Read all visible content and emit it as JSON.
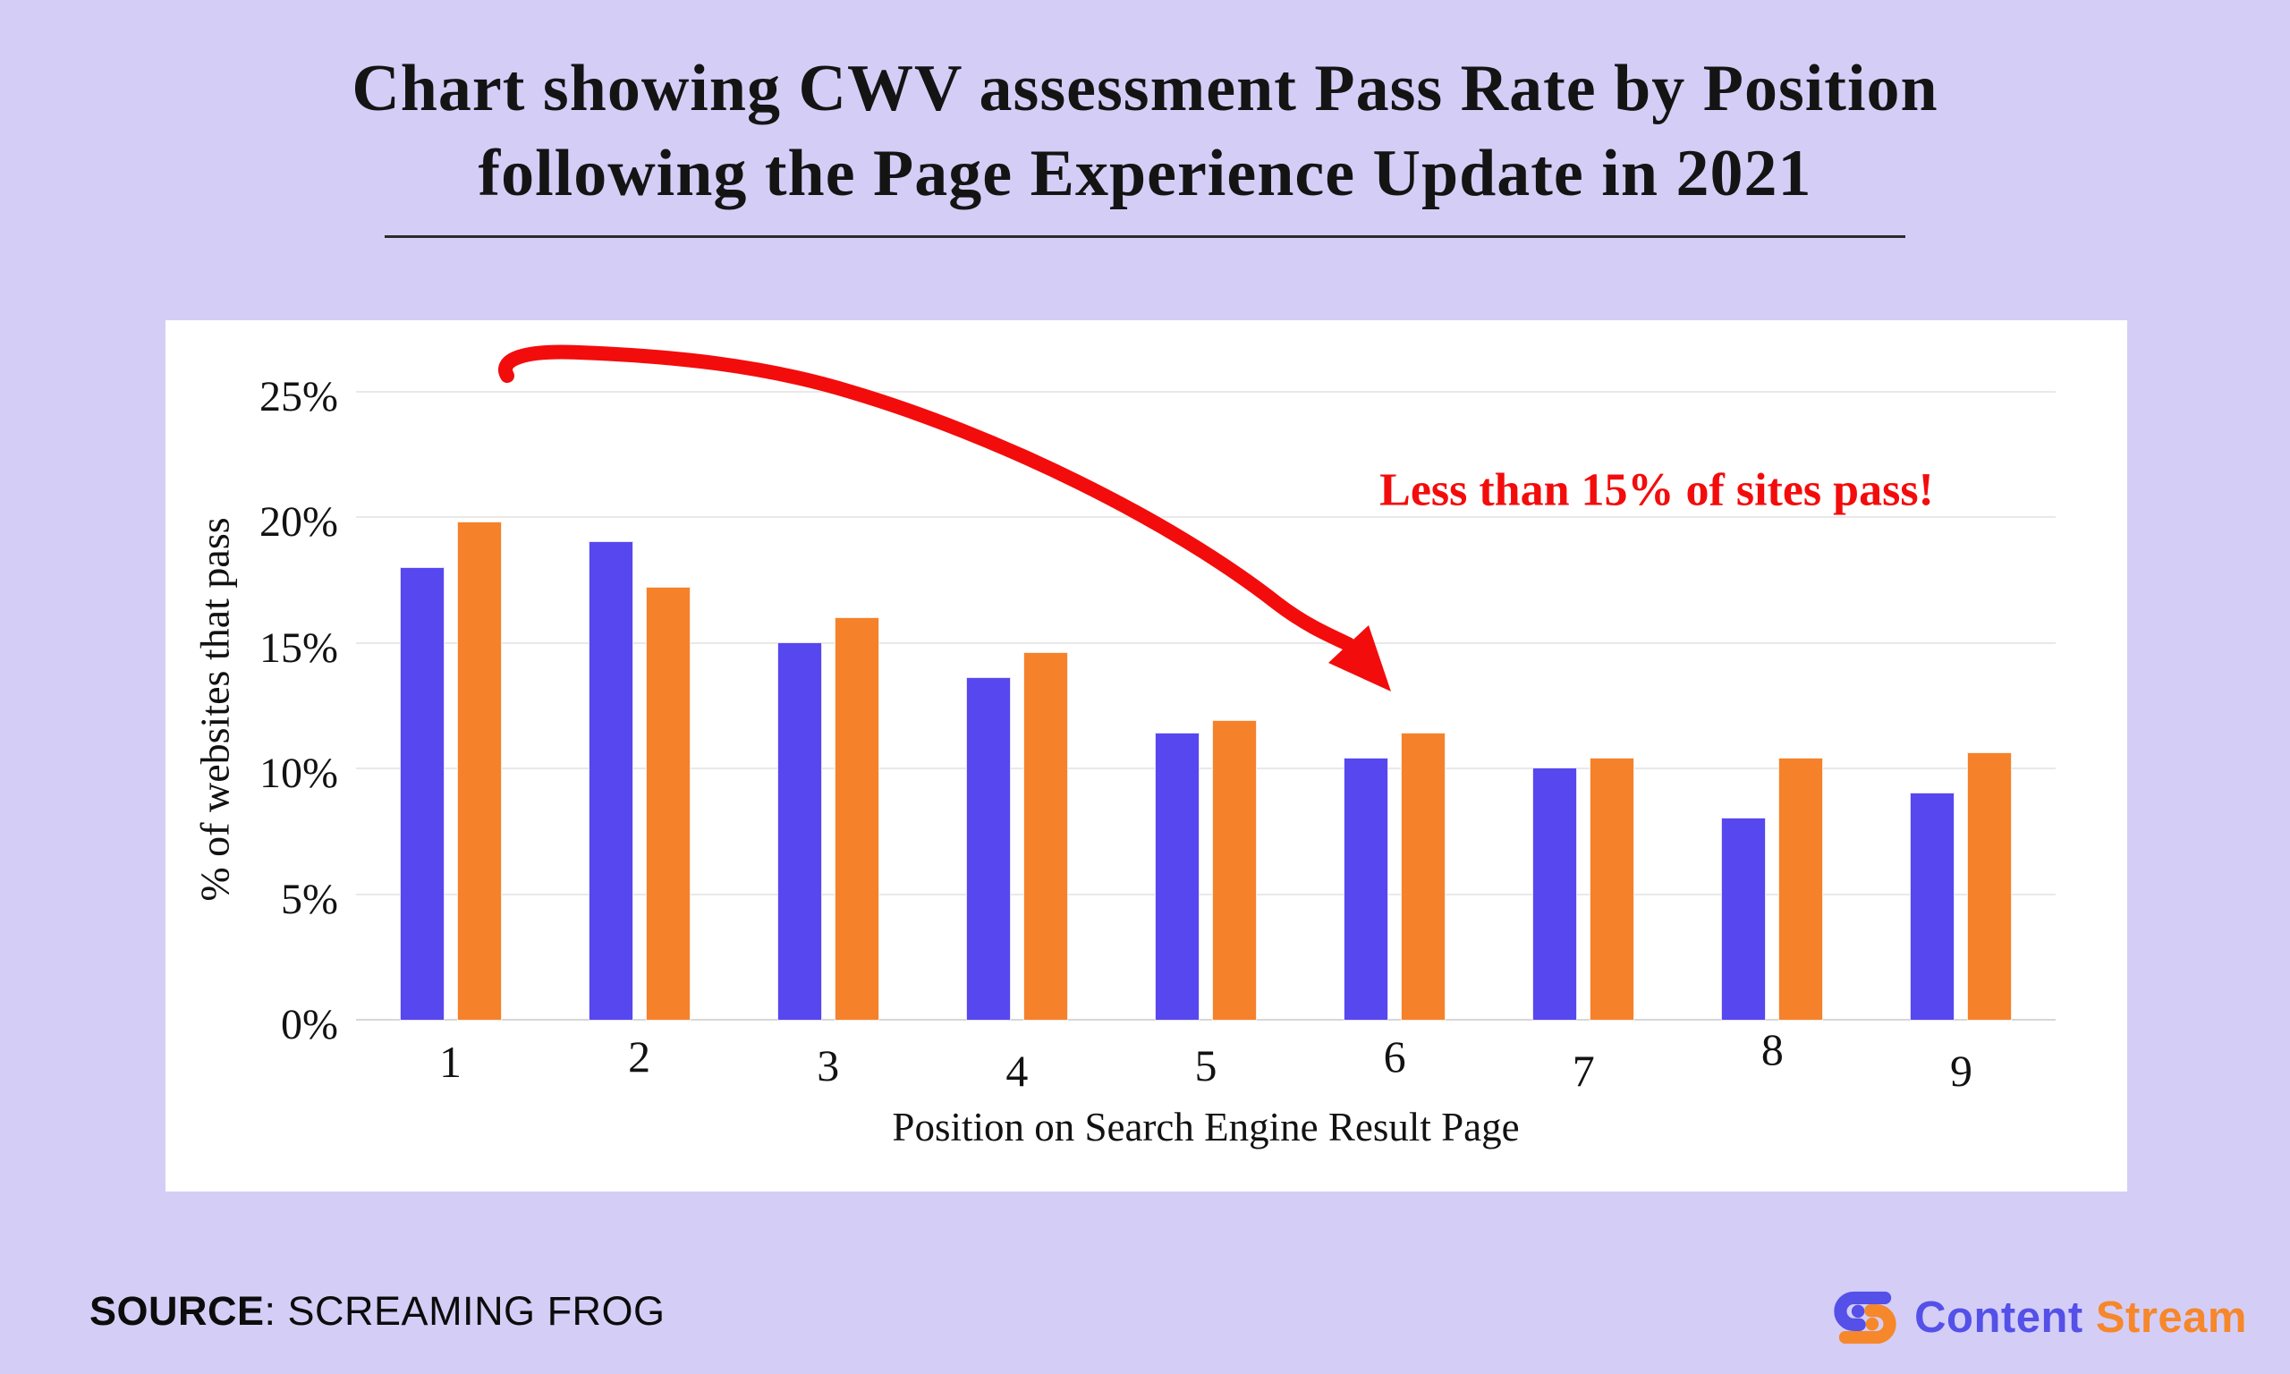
{
  "title": {
    "line1": "Chart showing CWV assessment Pass Rate by Position",
    "line2": "following the Page Experience Update in 2021"
  },
  "chart_data": {
    "type": "bar",
    "title": "Chart showing CWV assessment Pass Rate by Position following the Page Experience Update in 2021",
    "categories": [
      "1",
      "2",
      "3",
      "4",
      "5",
      "6",
      "7",
      "8",
      "9"
    ],
    "series": [
      {
        "name": "series-blue",
        "color": "#5747ee",
        "values": [
          18.0,
          19.0,
          15.0,
          13.6,
          11.4,
          10.4,
          10.0,
          8.0,
          9.0
        ]
      },
      {
        "name": "series-orange",
        "color": "#f5812b",
        "values": [
          19.8,
          17.2,
          16.0,
          14.6,
          11.9,
          11.4,
          10.4,
          10.4,
          10.6
        ]
      }
    ],
    "xlabel": "Position on Search Engine Result Page",
    "ylabel": "% of websites that pass",
    "ylim": [
      0,
      25
    ],
    "ytick_step": 5,
    "ytick_labels": [
      "0%",
      "5%",
      "10%",
      "15%",
      "20%",
      "25%"
    ],
    "grid": true,
    "legend_position": "none",
    "annotation": "Less than 15% of sites pass!"
  },
  "annotation": {
    "text": "Less than 15% of sites pass!",
    "color": "#f30c0c"
  },
  "source": {
    "label": "SOURCE",
    "value": ": SCREAMING FROG"
  },
  "logo": {
    "word1": "Content",
    "word2": "Stream",
    "blue": "#5450e8",
    "orange": "#f6872b"
  },
  "colors": {
    "background": "#d4cef7",
    "card": "#ffffff",
    "bar_blue": "#5747ee",
    "bar_orange": "#f5812b",
    "annotation_red": "#f30c0c"
  }
}
